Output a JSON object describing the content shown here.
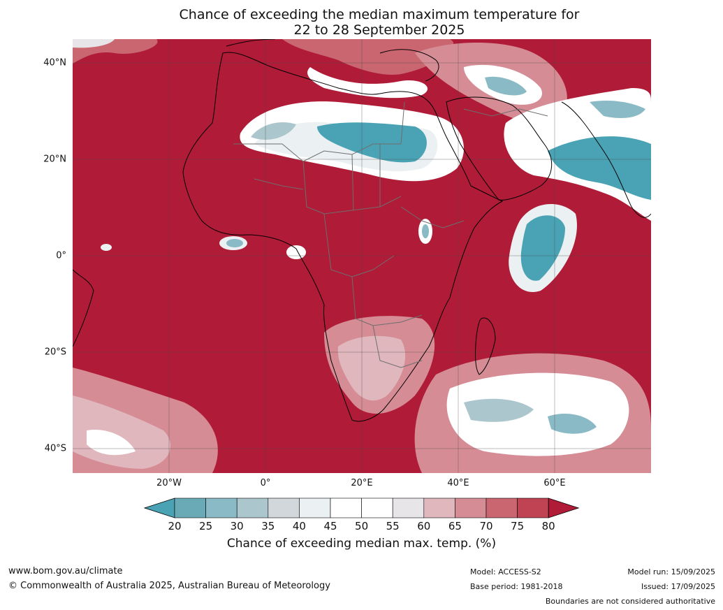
{
  "title_line1": "Chance of exceeding the median maximum temperature for",
  "title_line2": "22 to 28 September 2025",
  "lat_labels": [
    "40°N",
    "20°N",
    "0°",
    "20°S",
    "40°S"
  ],
  "lon_labels": [
    "20°W",
    "0°",
    "20°E",
    "40°E",
    "60°E"
  ],
  "colorbar": {
    "ticks": [
      "20",
      "25",
      "30",
      "35",
      "40",
      "45",
      "50",
      "55",
      "60",
      "65",
      "70",
      "75",
      "80"
    ],
    "colors": [
      "#4aa3b4",
      "#6aaab6",
      "#8abac5",
      "#abc6cc",
      "#d1d7da",
      "#ebf0f2",
      "#ffffff",
      "#ffffff",
      "#e7e5e7",
      "#e0b7bd",
      "#d58c95",
      "#c96670",
      "#bf4352",
      "#b01b38"
    ],
    "label": "Chance of exceeding median max. temp. (%)"
  },
  "footer": {
    "url": "www.bom.gov.au/climate",
    "copyright": "© Commonwealth of Australia 2025, Australian Bureau of Meteorology",
    "model": "Model: ACCESS-S2",
    "base_period": "Base period: 1981-2018",
    "model_run": "Model run: 15/09/2025",
    "issued": "Issued: 17/09/2025",
    "disclaimer": "Boundaries are not considered authoritative"
  }
}
